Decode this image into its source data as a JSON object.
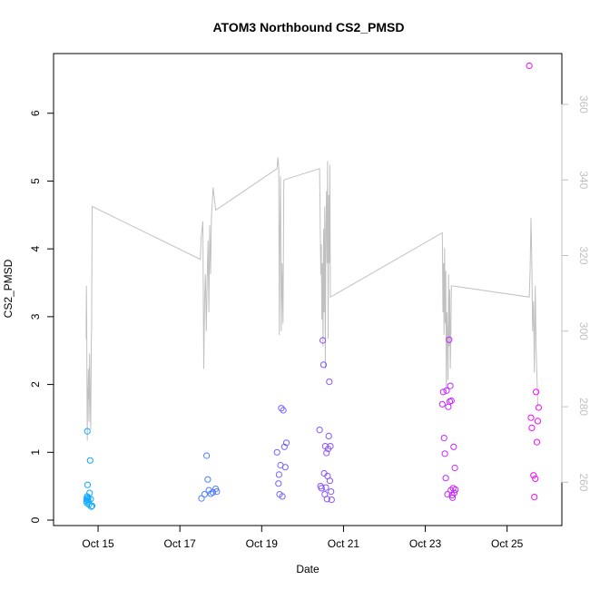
{
  "chart_data": {
    "type": "scatter",
    "title": "ATOM3 Northbound CS2_PMSD",
    "xlabel": "Date",
    "ylabel": "CS2_PMSD",
    "xlim": [
      "2023-10-14T00:00",
      "2023-10-26T06:00"
    ],
    "ylim": [
      0,
      6.8
    ],
    "x_ticks": [
      {
        "date": "2023-10-15",
        "label": "Oct 15"
      },
      {
        "date": "2023-10-17",
        "label": "Oct 17"
      },
      {
        "date": "2023-10-19",
        "label": "Oct 19"
      },
      {
        "date": "2023-10-21",
        "label": "Oct 21"
      },
      {
        "date": "2023-10-23",
        "label": "Oct 23"
      },
      {
        "date": "2023-10-25",
        "label": "Oct 25"
      }
    ],
    "y_ticks": [
      "0",
      "1",
      "2",
      "3",
      "4",
      "5",
      "6"
    ],
    "secondary_axis": {
      "ylim": [
        250,
        372
      ],
      "ticks": [
        "260",
        "280",
        "300",
        "320",
        "340",
        "360"
      ],
      "color": "#c0c0c0"
    },
    "point_color_gradient": [
      "#00b4ff",
      "#ff00ff"
    ],
    "series": [
      {
        "kind": "scatter",
        "axis": "left",
        "points": [
          [
            "2023-10-14T17:10",
            0.28
          ],
          [
            "2023-10-14T17:20",
            0.32
          ],
          [
            "2023-10-14T17:25",
            0.25
          ],
          [
            "2023-10-14T17:35",
            0.35
          ],
          [
            "2023-10-14T17:40",
            1.31
          ],
          [
            "2023-10-14T17:50",
            0.52
          ],
          [
            "2023-10-14T18:00",
            0.3
          ],
          [
            "2023-10-14T18:10",
            0.33
          ],
          [
            "2023-10-14T18:20",
            0.27
          ],
          [
            "2023-10-14T18:40",
            0.23
          ],
          [
            "2023-10-14T19:00",
            0.4
          ],
          [
            "2023-10-14T19:20",
            0.88
          ],
          [
            "2023-10-14T19:40",
            0.31
          ],
          [
            "2023-10-14T20:00",
            0.2
          ],
          [
            "2023-10-14T20:30",
            0.21
          ],
          [
            "2023-10-17T12:40",
            0.32
          ],
          [
            "2023-10-17T14:30",
            0.38
          ],
          [
            "2023-10-17T15:40",
            0.95
          ],
          [
            "2023-10-17T16:20",
            0.6
          ],
          [
            "2023-10-17T17:00",
            0.44
          ],
          [
            "2023-10-17T18:10",
            0.39
          ],
          [
            "2023-10-17T19:20",
            0.41
          ],
          [
            "2023-10-17T21:00",
            0.46
          ],
          [
            "2023-10-17T21:40",
            0.42
          ],
          [
            "2023-10-19T09:00",
            1.0
          ],
          [
            "2023-10-19T09:50",
            0.54
          ],
          [
            "2023-10-19T10:10",
            0.67
          ],
          [
            "2023-10-19T10:30",
            0.38
          ],
          [
            "2023-10-19T11:00",
            0.81
          ],
          [
            "2023-10-19T11:30",
            1.65
          ],
          [
            "2023-10-19T12:10",
            0.35
          ],
          [
            "2023-10-19T12:40",
            1.62
          ],
          [
            "2023-10-19T13:20",
            1.08
          ],
          [
            "2023-10-19T13:50",
            0.78
          ],
          [
            "2023-10-19T14:30",
            1.14
          ],
          [
            "2023-10-20T10:00",
            1.33
          ],
          [
            "2023-10-20T10:30",
            0.5
          ],
          [
            "2023-10-20T11:10",
            0.47
          ],
          [
            "2023-10-20T11:50",
            2.65
          ],
          [
            "2023-10-20T12:20",
            2.29
          ],
          [
            "2023-10-20T12:40",
            0.69
          ],
          [
            "2023-10-20T13:00",
            0.38
          ],
          [
            "2023-10-20T13:20",
            1.09
          ],
          [
            "2023-10-20T13:40",
            0.48
          ],
          [
            "2023-10-20T14:00",
            0.99
          ],
          [
            "2023-10-20T14:20",
            0.31
          ],
          [
            "2023-10-20T14:40",
            0.65
          ],
          [
            "2023-10-20T15:00",
            1.05
          ],
          [
            "2023-10-20T15:20",
            1.24
          ],
          [
            "2023-10-20T15:40",
            2.04
          ],
          [
            "2023-10-20T16:00",
            0.58
          ],
          [
            "2023-10-20T16:20",
            1.09
          ],
          [
            "2023-10-20T16:40",
            0.42
          ],
          [
            "2023-10-20T17:00",
            0.3
          ],
          [
            "2023-10-23T10:00",
            1.71
          ],
          [
            "2023-10-23T10:30",
            1.89
          ],
          [
            "2023-10-23T11:00",
            1.21
          ],
          [
            "2023-10-23T11:30",
            0.98
          ],
          [
            "2023-10-23T12:00",
            0.62
          ],
          [
            "2023-10-23T12:30",
            1.91
          ],
          [
            "2023-10-23T13:00",
            0.38
          ],
          [
            "2023-10-23T13:30",
            1.67
          ],
          [
            "2023-10-23T14:00",
            2.66
          ],
          [
            "2023-10-23T14:20",
            1.75
          ],
          [
            "2023-10-23T14:40",
            1.98
          ],
          [
            "2023-10-23T15:00",
            0.44
          ],
          [
            "2023-10-23T15:20",
            1.76
          ],
          [
            "2023-10-23T15:40",
            0.37
          ],
          [
            "2023-10-23T16:00",
            0.33
          ],
          [
            "2023-10-23T16:20",
            0.47
          ],
          [
            "2023-10-23T16:40",
            1.08
          ],
          [
            "2023-10-23T17:00",
            0.4
          ],
          [
            "2023-10-23T17:20",
            0.77
          ],
          [
            "2023-10-23T17:40",
            0.45
          ],
          [
            "2023-10-25T13:00",
            6.7
          ],
          [
            "2023-10-25T14:00",
            1.51
          ],
          [
            "2023-10-25T14:30",
            1.36
          ],
          [
            "2023-10-25T15:30",
            0.66
          ],
          [
            "2023-10-25T16:00",
            0.34
          ],
          [
            "2023-10-25T16:30",
            0.61
          ],
          [
            "2023-10-25T17:00",
            1.89
          ],
          [
            "2023-10-25T17:30",
            1.15
          ],
          [
            "2023-10-25T18:00",
            1.46
          ],
          [
            "2023-10-25T18:30",
            1.66
          ]
        ]
      },
      {
        "kind": "line",
        "axis": "right",
        "color": "#c0c0c0",
        "points": [
          [
            "2023-10-14T17:00",
            298
          ],
          [
            "2023-10-14T17:10",
            312
          ],
          [
            "2023-10-14T17:20",
            303
          ],
          [
            "2023-10-14T17:30",
            282
          ],
          [
            "2023-10-14T17:40",
            271
          ],
          [
            "2023-10-14T17:50",
            285
          ],
          [
            "2023-10-14T18:00",
            282
          ],
          [
            "2023-10-14T18:20",
            290
          ],
          [
            "2023-10-14T18:40",
            276
          ],
          [
            "2023-10-14T19:00",
            294
          ],
          [
            "2023-10-14T19:20",
            282
          ],
          [
            "2023-10-14T19:40",
            274
          ],
          [
            "2023-10-14T20:00",
            298
          ],
          [
            "2023-10-14T20:10",
            300
          ],
          [
            "2023-10-14T20:30",
            333
          ],
          [
            "2023-10-17T12:00",
            319
          ],
          [
            "2023-10-17T12:30",
            325
          ],
          [
            "2023-10-17T13:30",
            329
          ],
          [
            "2023-10-17T14:00",
            290
          ],
          [
            "2023-10-17T14:30",
            308
          ],
          [
            "2023-10-17T15:00",
            315
          ],
          [
            "2023-10-17T15:30",
            300
          ],
          [
            "2023-10-17T16:00",
            314
          ],
          [
            "2023-10-17T16:30",
            324
          ],
          [
            "2023-10-17T17:00",
            305
          ],
          [
            "2023-10-17T17:30",
            328
          ],
          [
            "2023-10-17T18:00",
            315
          ],
          [
            "2023-10-17T18:30",
            330
          ],
          [
            "2023-10-17T19:30",
            338
          ],
          [
            "2023-10-17T20:00",
            336
          ],
          [
            "2023-10-17T21:00",
            332
          ],
          [
            "2023-10-19T09:00",
            343
          ],
          [
            "2023-10-19T09:30",
            346
          ],
          [
            "2023-10-19T10:00",
            343
          ],
          [
            "2023-10-19T10:20",
            299
          ],
          [
            "2023-10-19T10:40",
            326
          ],
          [
            "2023-10-19T11:00",
            341
          ],
          [
            "2023-10-19T11:30",
            300
          ],
          [
            "2023-10-19T12:00",
            318
          ],
          [
            "2023-10-19T12:30",
            302
          ],
          [
            "2023-10-19T13:00",
            340
          ],
          [
            "2023-10-20T10:00",
            343
          ],
          [
            "2023-10-20T10:20",
            328
          ],
          [
            "2023-10-20T10:40",
            315
          ],
          [
            "2023-10-20T11:00",
            323
          ],
          [
            "2023-10-20T11:20",
            303
          ],
          [
            "2023-10-20T11:40",
            318
          ],
          [
            "2023-10-20T12:00",
            296
          ],
          [
            "2023-10-20T12:20",
            327
          ],
          [
            "2023-10-20T12:40",
            305
          ],
          [
            "2023-10-20T13:00",
            333
          ],
          [
            "2023-10-20T13:20",
            290
          ],
          [
            "2023-10-20T13:40",
            325
          ],
          [
            "2023-10-20T14:00",
            337
          ],
          [
            "2023-10-20T14:20",
            318
          ],
          [
            "2023-10-20T14:40",
            345
          ],
          [
            "2023-10-20T15:00",
            298
          ],
          [
            "2023-10-20T15:20",
            336
          ],
          [
            "2023-10-20T15:40",
            318
          ],
          [
            "2023-10-20T16:00",
            344
          ],
          [
            "2023-10-20T16:20",
            309
          ],
          [
            "2023-10-23T10:00",
            326
          ],
          [
            "2023-10-23T10:20",
            305
          ],
          [
            "2023-10-23T10:40",
            318
          ],
          [
            "2023-10-23T11:00",
            299
          ],
          [
            "2023-10-23T11:20",
            322
          ],
          [
            "2023-10-23T11:40",
            302
          ],
          [
            "2023-10-23T12:00",
            316
          ],
          [
            "2023-10-23T12:20",
            284
          ],
          [
            "2023-10-23T12:40",
            305
          ],
          [
            "2023-10-23T13:00",
            299
          ],
          [
            "2023-10-23T13:20",
            287
          ],
          [
            "2023-10-23T13:40",
            315
          ],
          [
            "2023-10-23T14:00",
            296
          ],
          [
            "2023-10-23T14:20",
            311
          ],
          [
            "2023-10-23T14:40",
            290
          ],
          [
            "2023-10-23T15:00",
            299
          ],
          [
            "2023-10-23T15:20",
            312
          ],
          [
            "2023-10-25T13:00",
            309
          ],
          [
            "2023-10-25T13:30",
            316
          ],
          [
            "2023-10-25T14:00",
            330
          ],
          [
            "2023-10-25T14:30",
            318
          ],
          [
            "2023-10-25T15:00",
            300
          ],
          [
            "2023-10-25T15:30",
            308
          ],
          [
            "2023-10-25T16:00",
            289
          ],
          [
            "2023-10-25T16:30",
            312
          ],
          [
            "2023-10-25T17:00",
            296
          ],
          [
            "2023-10-25T18:00",
            280
          ]
        ]
      }
    ]
  }
}
